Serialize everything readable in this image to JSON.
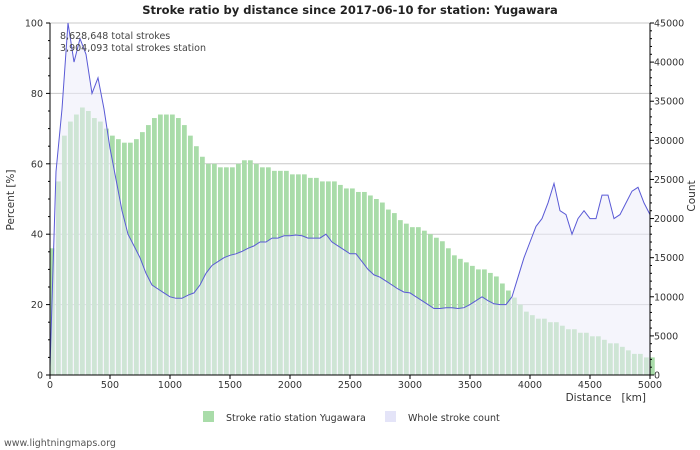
{
  "chart_data": {
    "type": "bar",
    "title": "Stroke ratio by distance since 2017-06-10 for station: Yugawara",
    "annotations": [
      "8,628,648 total strokes",
      "3,904,093 total strokes station"
    ],
    "xlabel": "Distance   [km]",
    "ylabel": "Percent   [%]",
    "y2label": "Count",
    "xlim": [
      0,
      5000
    ],
    "ylim": [
      0,
      100
    ],
    "y2lim": [
      0,
      45000
    ],
    "x_ticks": [
      0,
      500,
      1000,
      1500,
      2000,
      2500,
      3000,
      3500,
      4000,
      4500,
      5000
    ],
    "y_ticks": [
      0,
      20,
      40,
      60,
      80,
      100
    ],
    "y2_ticks": [
      0,
      5000,
      10000,
      15000,
      20000,
      25000,
      30000,
      35000,
      40000,
      45000
    ],
    "grid": true,
    "legend_position": "bottom",
    "series": [
      {
        "name": "Stroke ratio station Yugawara",
        "kind": "bar",
        "axis": "left",
        "color": "#a9dca9",
        "x": [
          0,
          50,
          100,
          150,
          200,
          250,
          300,
          350,
          400,
          450,
          500,
          550,
          600,
          650,
          700,
          750,
          800,
          850,
          900,
          950,
          1000,
          1050,
          1100,
          1150,
          1200,
          1250,
          1300,
          1350,
          1400,
          1450,
          1500,
          1550,
          1600,
          1650,
          1700,
          1750,
          1800,
          1850,
          1900,
          1950,
          2000,
          2050,
          2100,
          2150,
          2200,
          2250,
          2300,
          2350,
          2400,
          2450,
          2500,
          2550,
          2600,
          2650,
          2700,
          2750,
          2800,
          2850,
          2900,
          2950,
          3000,
          3050,
          3100,
          3150,
          3200,
          3250,
          3300,
          3350,
          3400,
          3450,
          3500,
          3550,
          3600,
          3650,
          3700,
          3750,
          3800,
          3850,
          3900,
          3950,
          4000,
          4050,
          4100,
          4150,
          4200,
          4250,
          4300,
          4350,
          4400,
          4450,
          4500,
          4550,
          4600,
          4650,
          4700,
          4750,
          4800,
          4850,
          4900,
          4950,
          5000
        ],
        "values": [
          36,
          55,
          68,
          72,
          74,
          76,
          75,
          73,
          72,
          70,
          68,
          67,
          66,
          66,
          67,
          69,
          71,
          73,
          74,
          74,
          74,
          73,
          71,
          68,
          65,
          62,
          60,
          60,
          59,
          59,
          59,
          60,
          61,
          61,
          60,
          59,
          59,
          58,
          58,
          58,
          57,
          57,
          57,
          56,
          56,
          55,
          55,
          55,
          54,
          53,
          53,
          52,
          52,
          51,
          50,
          49,
          47,
          46,
          44,
          43,
          42,
          42,
          41,
          40,
          39,
          38,
          36,
          34,
          33,
          32,
          31,
          30,
          30,
          29,
          28,
          26,
          24,
          22,
          20,
          18,
          17,
          16,
          16,
          15,
          15,
          14,
          13,
          13,
          12,
          12,
          11,
          11,
          10,
          9,
          9,
          8,
          7,
          6,
          6,
          5,
          5
        ]
      },
      {
        "name": "Whole stroke count",
        "kind": "area",
        "axis": "right",
        "color": "#ececfa",
        "line_color": "#5a5ad6",
        "x": [
          0,
          50,
          100,
          150,
          200,
          250,
          300,
          350,
          400,
          450,
          500,
          550,
          600,
          650,
          700,
          750,
          800,
          850,
          900,
          950,
          1000,
          1050,
          1100,
          1150,
          1200,
          1250,
          1300,
          1350,
          1400,
          1450,
          1500,
          1550,
          1600,
          1650,
          1700,
          1750,
          1800,
          1850,
          1900,
          1950,
          2000,
          2050,
          2100,
          2150,
          2200,
          2250,
          2300,
          2350,
          2400,
          2450,
          2500,
          2550,
          2600,
          2650,
          2700,
          2750,
          2800,
          2850,
          2900,
          2950,
          3000,
          3050,
          3100,
          3150,
          3200,
          3250,
          3300,
          3350,
          3400,
          3450,
          3500,
          3550,
          3600,
          3650,
          3700,
          3750,
          3800,
          3850,
          3900,
          3950,
          4000,
          4050,
          4100,
          4150,
          4200,
          4250,
          4300,
          4350,
          4400,
          4450,
          4500,
          4550,
          4600,
          4650,
          4700,
          4750,
          4800,
          4850,
          4900,
          4950,
          5000
        ],
        "values": [
          1000,
          26000,
          34000,
          45000,
          40000,
          43000,
          41000,
          36000,
          38000,
          34000,
          29000,
          25000,
          21000,
          18000,
          16500,
          15000,
          13000,
          11500,
          11000,
          10500,
          10000,
          9800,
          9800,
          10200,
          10500,
          11500,
          13000,
          14000,
          14500,
          15000,
          15300,
          15500,
          15800,
          16200,
          16500,
          17000,
          17000,
          17500,
          17500,
          17800,
          17800,
          17900,
          17800,
          17500,
          17500,
          17500,
          18000,
          17000,
          16500,
          16000,
          15500,
          15500,
          14500,
          13500,
          12800,
          12500,
          12000,
          11500,
          11000,
          10600,
          10500,
          10000,
          9500,
          9000,
          8500,
          8500,
          8600,
          8600,
          8500,
          8600,
          9000,
          9500,
          10000,
          9500,
          9100,
          9000,
          9000,
          10000,
          12500,
          15000,
          17000,
          19000,
          20000,
          22000,
          24500,
          21000,
          20500,
          18000,
          20000,
          21000,
          20000,
          20000,
          23000,
          23000,
          20000,
          20500,
          22000,
          23500,
          24000,
          22000,
          20500
        ]
      }
    ]
  },
  "footer": {
    "credit": "www.lightningmaps.org"
  }
}
